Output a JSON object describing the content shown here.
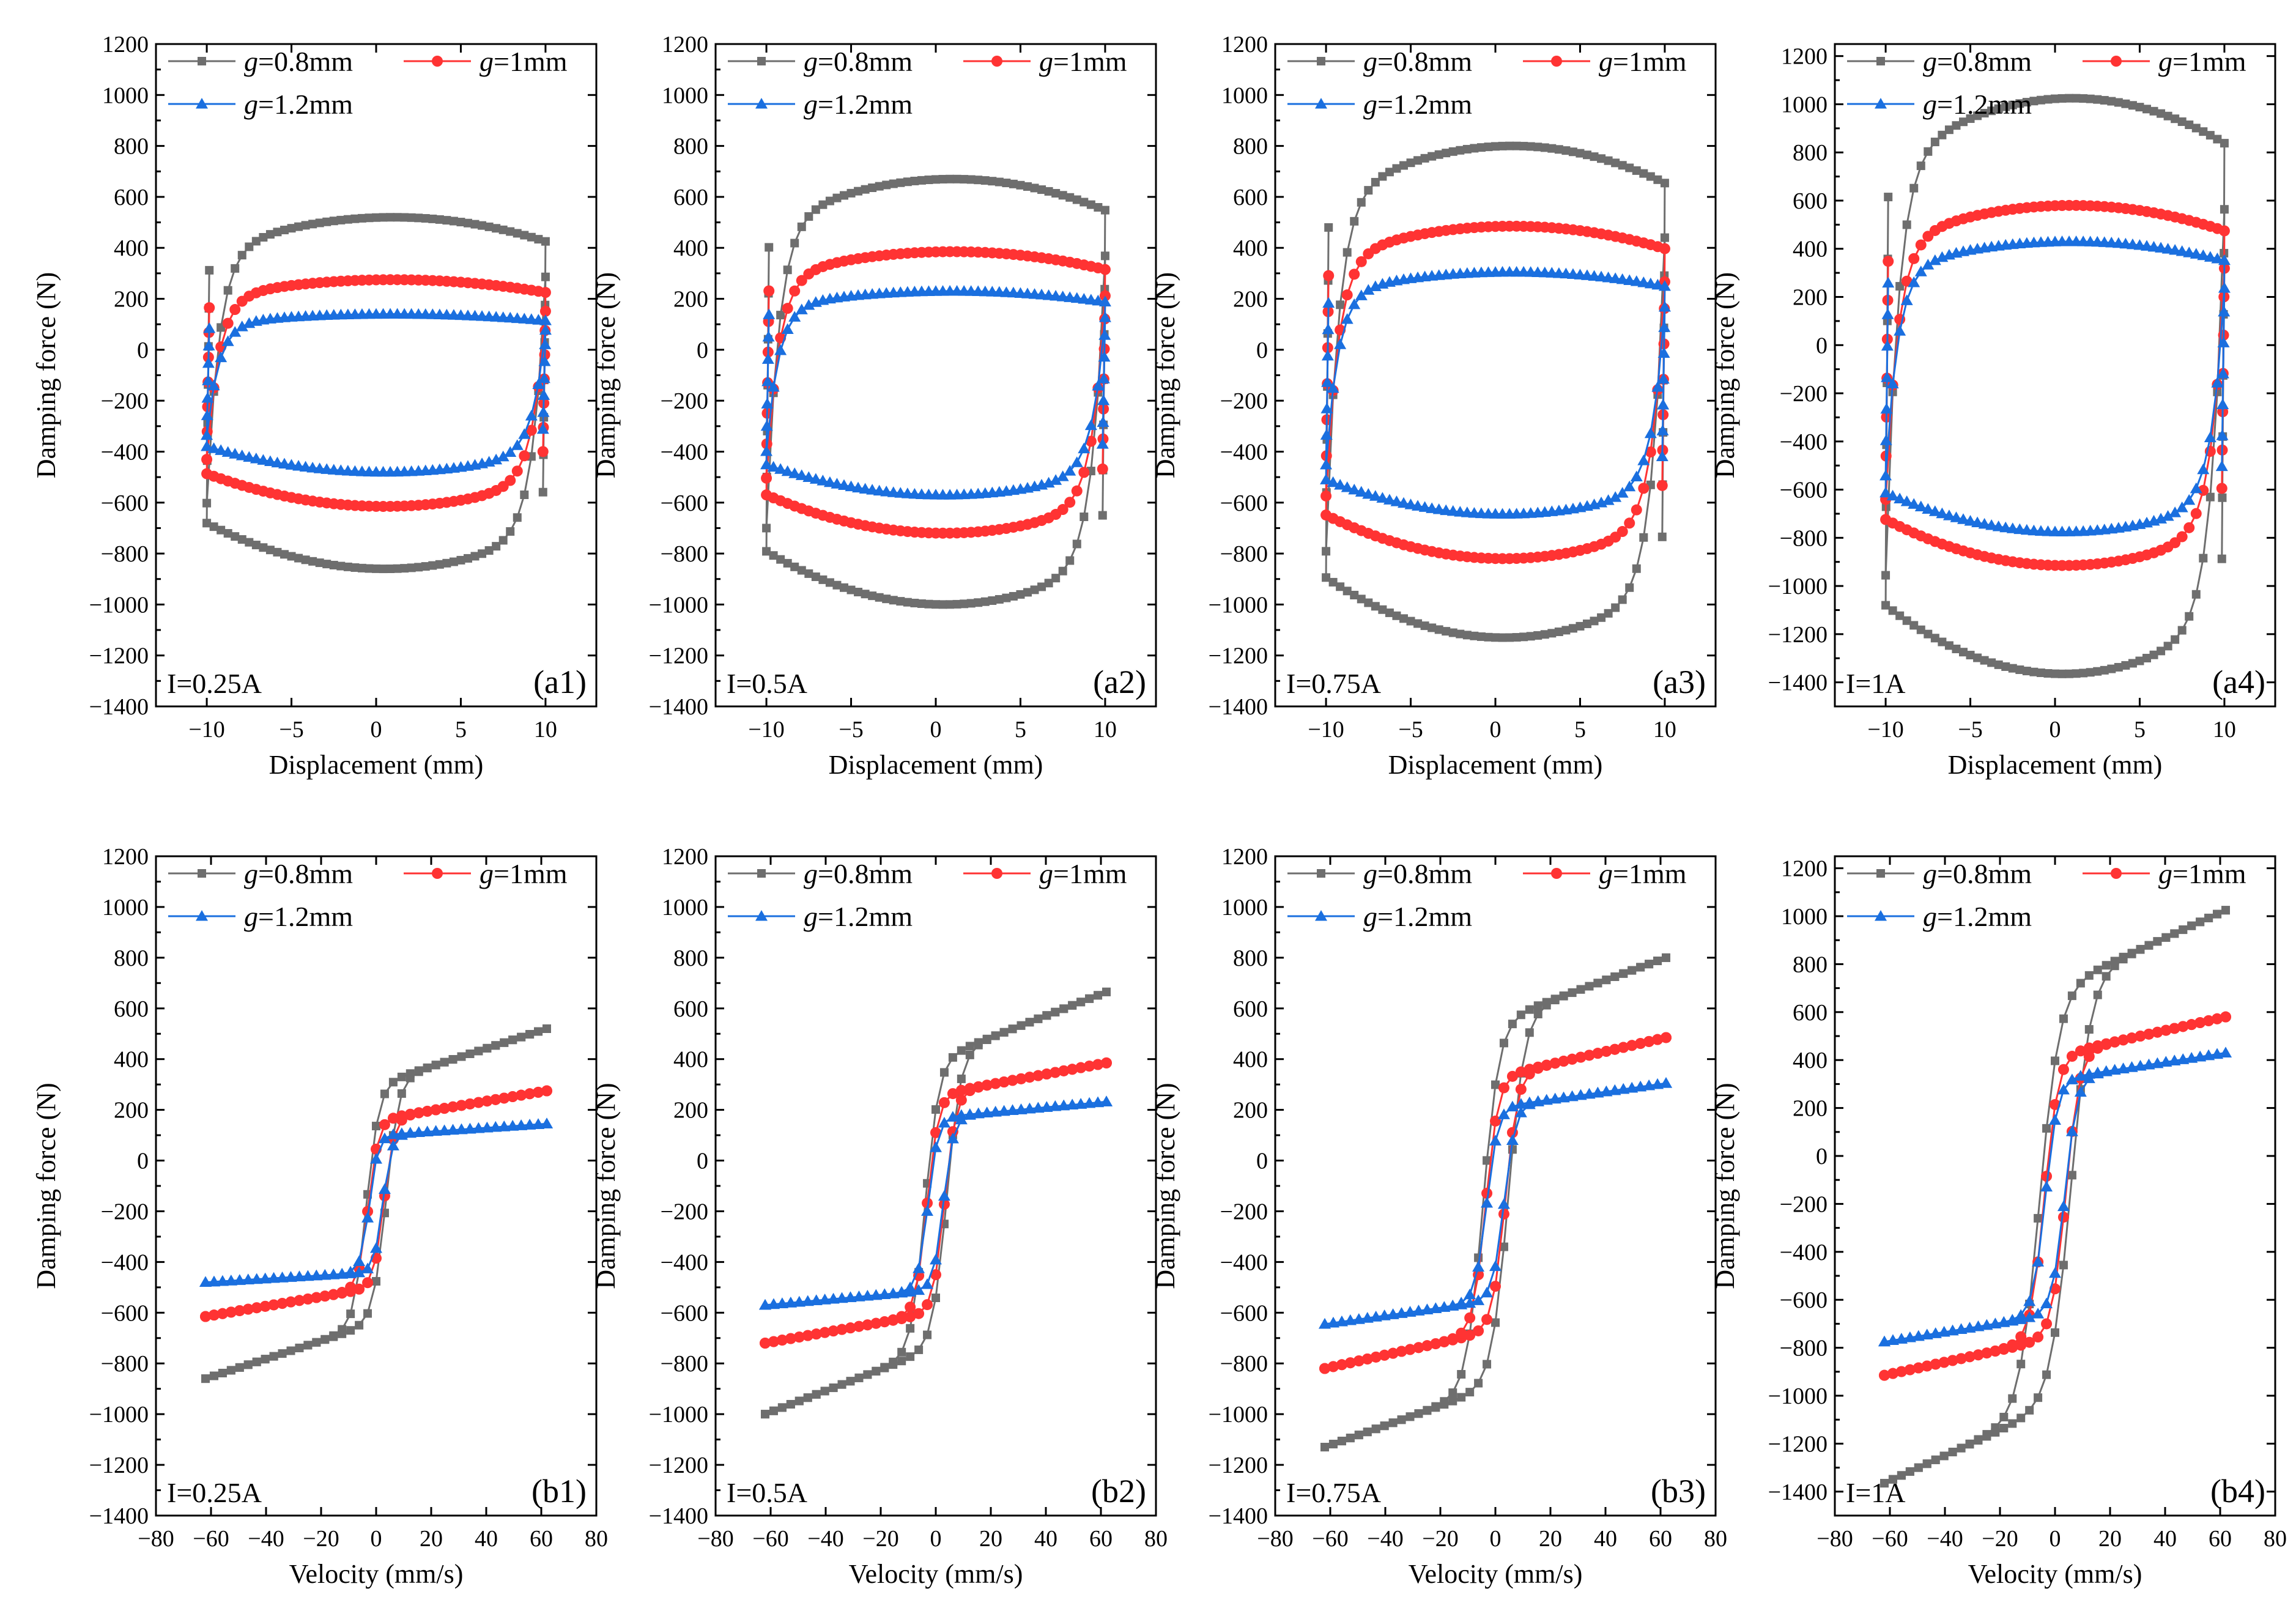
{
  "legend_labels": {
    "g08": [
      "g",
      "=0.8mm"
    ],
    "g10": [
      "g",
      "=1mm"
    ],
    "g12": [
      "g",
      "=1.2mm"
    ]
  },
  "colors": {
    "g08": "#6e6e6e",
    "g10": "#ff3333",
    "g12": "#1a6fdf"
  },
  "chart_data": [
    {
      "id": "a1",
      "type": "line",
      "subtype": "hysteresis-loop",
      "panel_label": "(a1)",
      "current_label": "I=0.25A",
      "xlabel": "Displacement (mm)",
      "ylabel": "Damping force (N)",
      "xlim": [
        -13,
        13
      ],
      "ylim": [
        -1400,
        1200
      ],
      "xticks": [
        -10,
        -5,
        0,
        5,
        10
      ],
      "yticks": [
        -1400,
        -1200,
        -1000,
        -800,
        -600,
        -400,
        -200,
        0,
        200,
        400,
        600,
        800,
        1000,
        1200
      ],
      "series": [
        {
          "name": "g=0.8mm",
          "key": "g08",
          "marker": "square",
          "upper_max": 520,
          "lower_min": -860
        },
        {
          "name": "g=1mm",
          "key": "g10",
          "marker": "circle",
          "upper_max": 275,
          "lower_min": -615
        },
        {
          "name": "g=1.2mm",
          "key": "g12",
          "marker": "triangle",
          "upper_max": 140,
          "lower_min": -480
        }
      ]
    },
    {
      "id": "a2",
      "type": "line",
      "subtype": "hysteresis-loop",
      "panel_label": "(a2)",
      "current_label": "I=0.5A",
      "xlabel": "Displacement (mm)",
      "ylabel": "Damping force (N)",
      "xlim": [
        -13,
        13
      ],
      "ylim": [
        -1400,
        1200
      ],
      "xticks": [
        -10,
        -5,
        0,
        5,
        10
      ],
      "yticks": [
        -1400,
        -1200,
        -1000,
        -800,
        -600,
        -400,
        -200,
        0,
        200,
        400,
        600,
        800,
        1000,
        1200
      ],
      "series": [
        {
          "name": "g=0.8mm",
          "key": "g08",
          "marker": "square",
          "upper_max": 670,
          "lower_min": -1000
        },
        {
          "name": "g=1mm",
          "key": "g10",
          "marker": "circle",
          "upper_max": 385,
          "lower_min": -720
        },
        {
          "name": "g=1.2mm",
          "key": "g12",
          "marker": "triangle",
          "upper_max": 230,
          "lower_min": -570
        }
      ]
    },
    {
      "id": "a3",
      "type": "line",
      "subtype": "hysteresis-loop",
      "panel_label": "(a3)",
      "current_label": "I=0.75A",
      "xlabel": "Displacement (mm)",
      "ylabel": "Damping force (N)",
      "xlim": [
        -13,
        13
      ],
      "ylim": [
        -1400,
        1200
      ],
      "xticks": [
        -10,
        -5,
        0,
        5,
        10
      ],
      "yticks": [
        -1400,
        -1200,
        -1000,
        -800,
        -600,
        -400,
        -200,
        0,
        200,
        400,
        600,
        800,
        1000,
        1200
      ],
      "series": [
        {
          "name": "g=0.8mm",
          "key": "g08",
          "marker": "square",
          "upper_max": 800,
          "lower_min": -1130
        },
        {
          "name": "g=1mm",
          "key": "g10",
          "marker": "circle",
          "upper_max": 485,
          "lower_min": -820
        },
        {
          "name": "g=1.2mm",
          "key": "g12",
          "marker": "triangle",
          "upper_max": 305,
          "lower_min": -645
        }
      ]
    },
    {
      "id": "a4",
      "type": "line",
      "subtype": "hysteresis-loop",
      "panel_label": "(a4)",
      "current_label": "I=1A",
      "xlabel": "Displacement (mm)",
      "ylabel": "Damping force (N)",
      "xlim": [
        -13,
        13
      ],
      "ylim": [
        -1500,
        1250
      ],
      "xticks": [
        -10,
        -5,
        0,
        5,
        10
      ],
      "yticks": [
        -1400,
        -1200,
        -1000,
        -800,
        -600,
        -400,
        -200,
        0,
        200,
        400,
        600,
        800,
        1000,
        1200
      ],
      "series": [
        {
          "name": "g=0.8mm",
          "key": "g08",
          "marker": "square",
          "upper_max": 1025,
          "lower_min": -1365
        },
        {
          "name": "g=1mm",
          "key": "g10",
          "marker": "circle",
          "upper_max": 580,
          "lower_min": -915
        },
        {
          "name": "g=1.2mm",
          "key": "g12",
          "marker": "triangle",
          "upper_max": 430,
          "lower_min": -775
        }
      ]
    },
    {
      "id": "b1",
      "type": "line",
      "subtype": "force-velocity",
      "panel_label": "(b1)",
      "current_label": "I=0.25A",
      "xlabel": "Velocity (mm/s)",
      "ylabel": "Damping force (N)",
      "xlim": [
        -80,
        80
      ],
      "ylim": [
        -1400,
        1200
      ],
      "xticks": [
        -80,
        -60,
        -40,
        -20,
        0,
        20,
        40,
        60,
        80
      ],
      "yticks": [
        -1400,
        -1200,
        -1000,
        -800,
        -600,
        -400,
        -200,
        0,
        200,
        400,
        600,
        800,
        1000,
        1200
      ],
      "series": [
        {
          "name": "g=0.8mm",
          "key": "g08",
          "marker": "square",
          "f_at_vmin": -860,
          "f_at_vmax": 520,
          "yield": 300,
          "offset": -170,
          "v_trans": 10
        },
        {
          "name": "g=1mm",
          "key": "g10",
          "marker": "circle",
          "f_at_vmin": -615,
          "f_at_vmax": 275,
          "yield": 160,
          "offset": -170,
          "v_trans": 8
        },
        {
          "name": "g=1.2mm",
          "key": "g12",
          "marker": "triangle",
          "f_at_vmin": -480,
          "f_at_vmax": 145,
          "yield": 100,
          "offset": -170,
          "v_trans": 7
        }
      ]
    },
    {
      "id": "b2",
      "type": "line",
      "subtype": "force-velocity",
      "panel_label": "(b2)",
      "current_label": "I=0.5A",
      "xlabel": "Velocity (mm/s)",
      "ylabel": "Damping force (N)",
      "xlim": [
        -80,
        80
      ],
      "ylim": [
        -1400,
        1200
      ],
      "xticks": [
        -80,
        -60,
        -40,
        -20,
        0,
        20,
        40,
        60,
        80
      ],
      "yticks": [
        -1400,
        -1200,
        -1000,
        -800,
        -600,
        -400,
        -200,
        0,
        200,
        400,
        600,
        800,
        1000,
        1200
      ],
      "series": [
        {
          "name": "g=0.8mm",
          "key": "g08",
          "marker": "square",
          "f_at_vmin": -1000,
          "f_at_vmax": 665,
          "yield": 400,
          "offset": -170,
          "v_trans": 11
        },
        {
          "name": "g=1mm",
          "key": "g10",
          "marker": "circle",
          "f_at_vmin": -720,
          "f_at_vmax": 385,
          "yield": 260,
          "offset": -170,
          "v_trans": 9
        },
        {
          "name": "g=1.2mm",
          "key": "g12",
          "marker": "triangle",
          "f_at_vmin": -570,
          "f_at_vmax": 232,
          "yield": 170,
          "offset": -170,
          "v_trans": 8
        }
      ]
    },
    {
      "id": "b3",
      "type": "line",
      "subtype": "force-velocity",
      "panel_label": "(b3)",
      "current_label": "I=0.75A",
      "xlabel": "Velocity (mm/s)",
      "ylabel": "Damping force (N)",
      "xlim": [
        -80,
        80
      ],
      "ylim": [
        -1400,
        1200
      ],
      "xticks": [
        -80,
        -60,
        -40,
        -20,
        0,
        20,
        40,
        60,
        80
      ],
      "yticks": [
        -1400,
        -1200,
        -1000,
        -800,
        -600,
        -400,
        -200,
        0,
        200,
        400,
        600,
        800,
        1000,
        1200
      ],
      "series": [
        {
          "name": "g=0.8mm",
          "key": "g08",
          "marker": "square",
          "f_at_vmin": -1130,
          "f_at_vmax": 800,
          "yield": 550,
          "offset": -170,
          "v_trans": 13
        },
        {
          "name": "g=1mm",
          "key": "g10",
          "marker": "circle",
          "f_at_vmin": -820,
          "f_at_vmax": 485,
          "yield": 330,
          "offset": -170,
          "v_trans": 10
        },
        {
          "name": "g=1.2mm",
          "key": "g12",
          "marker": "triangle",
          "f_at_vmin": -645,
          "f_at_vmax": 305,
          "yield": 210,
          "offset": -170,
          "v_trans": 9
        }
      ]
    },
    {
      "id": "b4",
      "type": "line",
      "subtype": "force-velocity",
      "panel_label": "(b4)",
      "current_label": "I=1A",
      "xlabel": "Velocity (mm/s)",
      "ylabel": "Damping force (N)",
      "xlim": [
        -80,
        80
      ],
      "ylim": [
        -1500,
        1250
      ],
      "xticks": [
        -80,
        -60,
        -40,
        -20,
        0,
        20,
        40,
        60,
        80
      ],
      "yticks": [
        -1400,
        -1200,
        -1000,
        -800,
        -600,
        -400,
        -200,
        0,
        200,
        400,
        600,
        800,
        1000,
        1200
      ],
      "series": [
        {
          "name": "g=0.8mm",
          "key": "g08",
          "marker": "square",
          "f_at_vmin": -1365,
          "f_at_vmax": 1025,
          "yield": 700,
          "offset": -170,
          "v_trans": 16
        },
        {
          "name": "g=1mm",
          "key": "g10",
          "marker": "circle",
          "f_at_vmin": -915,
          "f_at_vmax": 580,
          "yield": 420,
          "offset": -170,
          "v_trans": 11
        },
        {
          "name": "g=1.2mm",
          "key": "g12",
          "marker": "triangle",
          "f_at_vmin": -775,
          "f_at_vmax": 430,
          "yield": 320,
          "offset": -170,
          "v_trans": 10
        }
      ]
    }
  ]
}
